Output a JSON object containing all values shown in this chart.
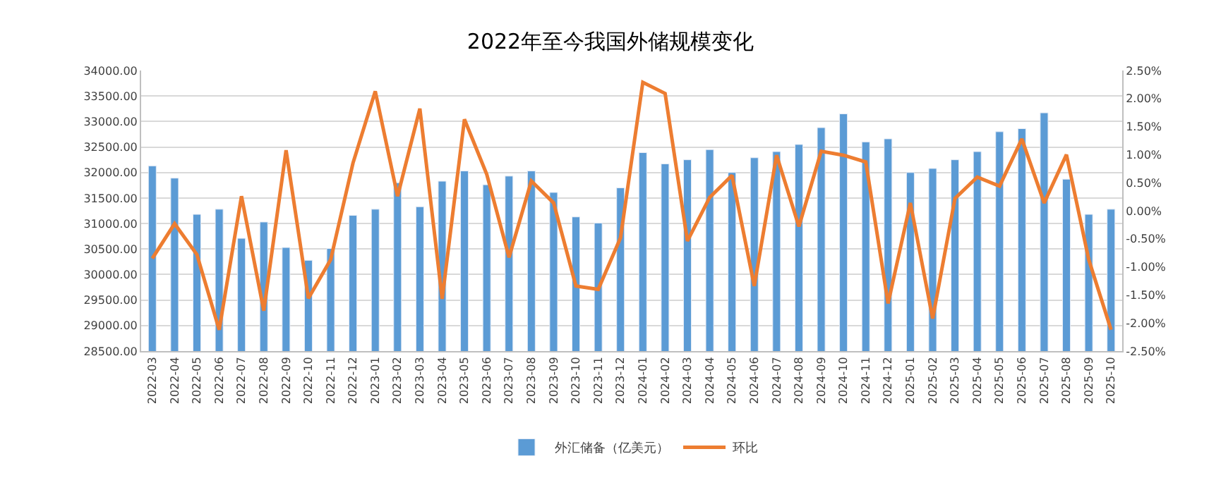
{
  "chart_data": {
    "type": "bar",
    "title": "2022年至今我国外储规模变化",
    "categories": [
      "2022-03",
      "2022-04",
      "2022-05",
      "2022-06",
      "2022-07",
      "2022-08",
      "2022-09",
      "2022-10",
      "2022-11",
      "2022-12",
      "2023-01",
      "2023-02",
      "2023-03",
      "2023-04",
      "2023-05",
      "2023-06",
      "2023-07",
      "2023-08",
      "2023-09",
      "2023-10",
      "2023-11",
      "2023-12",
      "2024-01",
      "2024-02",
      "2024-03",
      "2024-04",
      "2024-05",
      "2024-06",
      "2024-07",
      "2024-08",
      "2024-09",
      "2024-10",
      "2024-11",
      "2024-12",
      "2025-01",
      "2025-02",
      "2025-03",
      "2025-04",
      "2025-05",
      "2025-06",
      "2025-07",
      "2025-08",
      "2025-09",
      "2025-10"
    ],
    "series": [
      {
        "name": "外汇储备（亿美元）",
        "color": "#5b9bd5",
        "values": [
          32130,
          31890,
          31180,
          31280,
          30710,
          31030,
          30530,
          30280,
          30510,
          31160,
          31280,
          31800,
          31330,
          31830,
          32030,
          31760,
          31930,
          32030,
          31610,
          31130,
          31010,
          31700,
          32390,
          32170,
          32250,
          32450,
          32000,
          32290,
          32410,
          32550,
          32880,
          33150,
          32600,
          32660,
          32000,
          32080,
          32250,
          32410,
          32800,
          32860,
          33170,
          31870,
          31180,
          31280
        ]
      },
      {
        "name": "环比",
        "type": "line",
        "axis": "y2",
        "color": "#ed7d31",
        "values": [
          -0.85,
          -0.23,
          -0.78,
          -2.12,
          0.26,
          -1.78,
          1.08,
          -1.56,
          -0.87,
          0.85,
          2.13,
          0.26,
          1.82,
          -1.57,
          1.63,
          0.65,
          -0.83,
          0.53,
          0.14,
          -1.34,
          -1.4,
          -0.48,
          2.29,
          2.09,
          -0.54,
          0.24,
          0.63,
          -1.34,
          0.99,
          -0.28,
          1.06,
          0.99,
          0.87,
          -1.65,
          0.14,
          -1.92,
          0.22,
          0.6,
          0.44,
          1.28,
          0.14,
          1.0,
          -0.87,
          -2.12
        ]
      }
    ],
    "ylim": [
      28500,
      34000
    ],
    "yticks": [
      {
        "value": 28500,
        "label": "28500.00"
      },
      {
        "value": 29000,
        "label": "29000.00"
      },
      {
        "value": 29500,
        "label": "29500.00"
      },
      {
        "value": 30000,
        "label": "30000.00"
      },
      {
        "value": 30500,
        "label": "30500.00"
      },
      {
        "value": 31000,
        "label": "31000.00"
      },
      {
        "value": 31500,
        "label": "31500.00"
      },
      {
        "value": 32000,
        "label": "32000.00"
      },
      {
        "value": 32500,
        "label": "32500.00"
      },
      {
        "value": 33000,
        "label": "33000.00"
      },
      {
        "value": 33500,
        "label": "33500.00"
      },
      {
        "value": 34000,
        "label": "34000.00"
      }
    ],
    "y2lim": [
      -2.5,
      2.5
    ],
    "y2ticks": [
      {
        "value": -2.5,
        "label": "-2.50%"
      },
      {
        "value": -2.0,
        "label": "-2.00%"
      },
      {
        "value": -1.5,
        "label": "-1.50%"
      },
      {
        "value": -1.0,
        "label": "-1.00%"
      },
      {
        "value": -0.5,
        "label": "-0.50%"
      },
      {
        "value": 0,
        "label": "0.00%"
      },
      {
        "value": 0.5,
        "label": "0.50%"
      },
      {
        "value": 1.0,
        "label": "1.00%"
      },
      {
        "value": 1.5,
        "label": "1.50%"
      },
      {
        "value": 2.0,
        "label": "2.00%"
      },
      {
        "value": 2.5,
        "label": "2.50%"
      }
    ],
    "grid": "y",
    "legend": "bottom",
    "marker": "none",
    "line_style": "solid"
  }
}
